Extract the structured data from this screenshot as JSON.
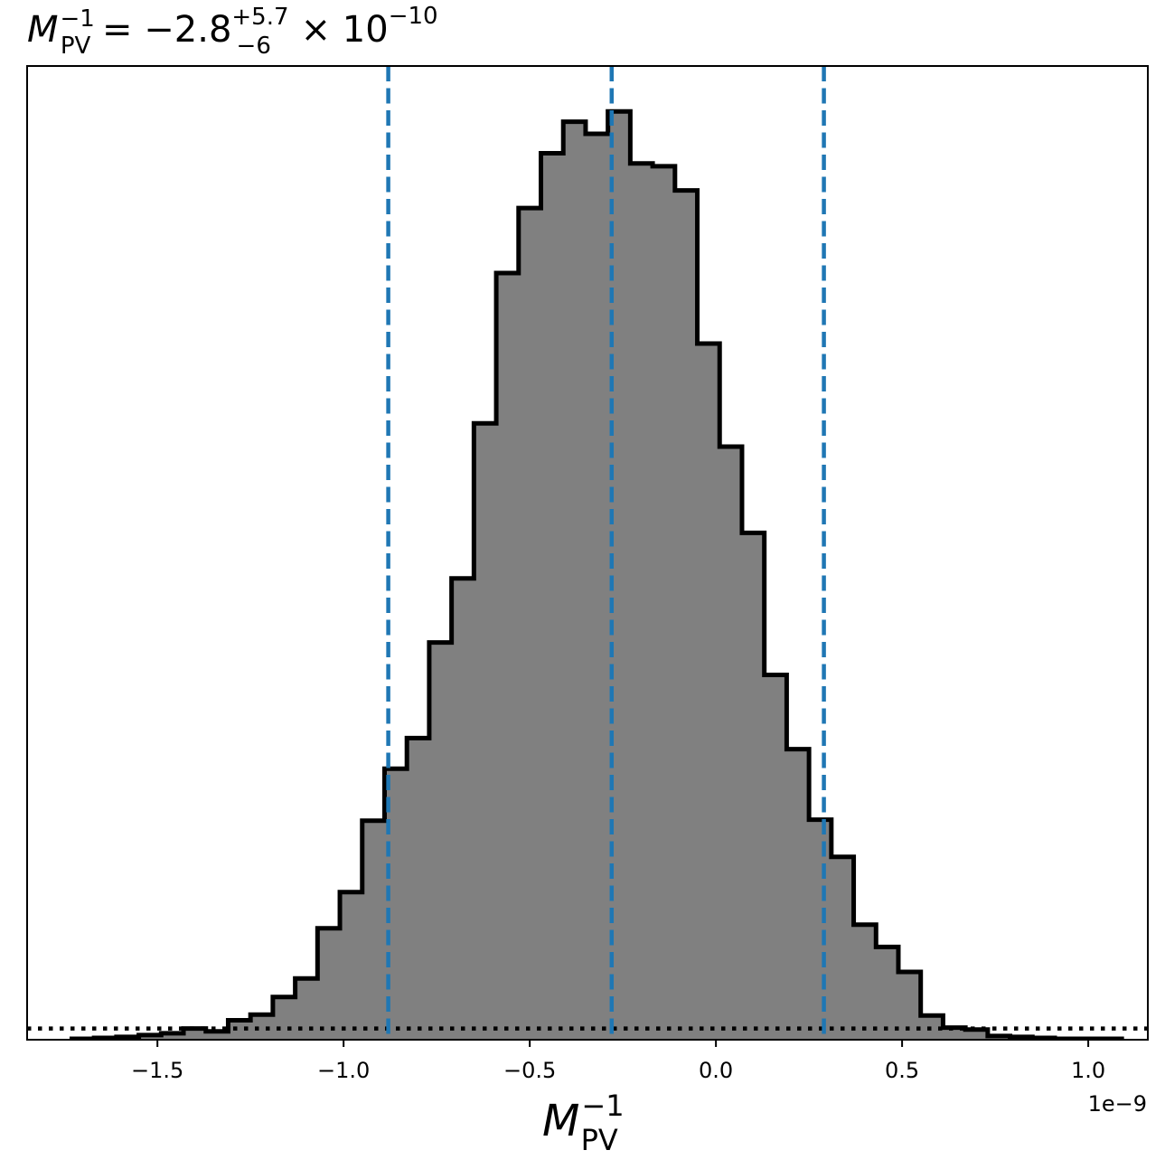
{
  "chart_data": {
    "type": "bar",
    "title": {
      "symbol": "M",
      "sup": "−1",
      "sub": "PV",
      "equals": " = −2.8",
      "err_plus": "+5.7",
      "err_minus": "−6",
      "times": " × 10",
      "exponent": "−10"
    },
    "xlabel": {
      "symbol": "M",
      "sup": "−1",
      "sub": "PV"
    },
    "ylabel": "",
    "offset_text": "1e−9",
    "xlim": [
      -1.85e-09,
      1.16e-09
    ],
    "ylim": [
      0,
      1.049
    ],
    "x_ticks": [
      -1.5e-09,
      -1e-09,
      -5e-10,
      0.0,
      5e-10,
      1e-09
    ],
    "x_tick_labels": [
      "−1.5",
      "−1.0",
      "−0.5",
      "0.0",
      "0.5",
      "1.0"
    ],
    "bin_edges": [
      -1.73e-09,
      -1.67e-09,
      -1.61e-09,
      -1.55e-09,
      -1.49e-09,
      -1.43e-09,
      -1.37e-09,
      -1.31e-09,
      -1.25e-09,
      -1.19e-09,
      -1.13e-09,
      -1.07e-09,
      -1.01e-09,
      -9.5e-10,
      -8.9e-10,
      -8.3e-10,
      -7.7e-10,
      -7.1e-10,
      -6.5e-10,
      -5.9e-10,
      -5.3e-10,
      -4.7e-10,
      -4.1e-10,
      -3.5e-10,
      -2.9e-10,
      -2.3e-10,
      -1.7e-10,
      -1.1e-10,
      -5e-11,
      1e-11,
      7e-11,
      1.3e-10,
      1.9e-10,
      2.5e-10,
      3.1e-10,
      3.7e-10,
      4.3e-10,
      4.9e-10,
      5.5e-10,
      6.1e-10,
      6.7e-10,
      7.3e-10,
      7.9e-10,
      8.5e-10,
      9.1e-10,
      9.7e-10,
      1.03e-09,
      1.09e-09
    ],
    "values": [
      0.001,
      0.002,
      0.003,
      0.005,
      0.007,
      0.012,
      0.009,
      0.021,
      0.027,
      0.046,
      0.066,
      0.12,
      0.159,
      0.236,
      0.292,
      0.325,
      0.428,
      0.497,
      0.664,
      0.826,
      0.896,
      0.955,
      0.989,
      0.976,
      1.0,
      0.944,
      0.941,
      0.915,
      0.75,
      0.639,
      0.546,
      0.393,
      0.313,
      0.237,
      0.197,
      0.124,
      0.1,
      0.073,
      0.026,
      0.013,
      0.011,
      0.004,
      0.003,
      0.002,
      0.001,
      0.001,
      0.001
    ],
    "quantile_lines": [
      -8.8e-10,
      -2.8e-10,
      2.9e-10
    ],
    "reference_level": 0.012,
    "grid": false,
    "colors": {
      "fill": "#808080",
      "outline": "#000000",
      "quantile": "#1f77b4",
      "reference": "#000000"
    }
  }
}
